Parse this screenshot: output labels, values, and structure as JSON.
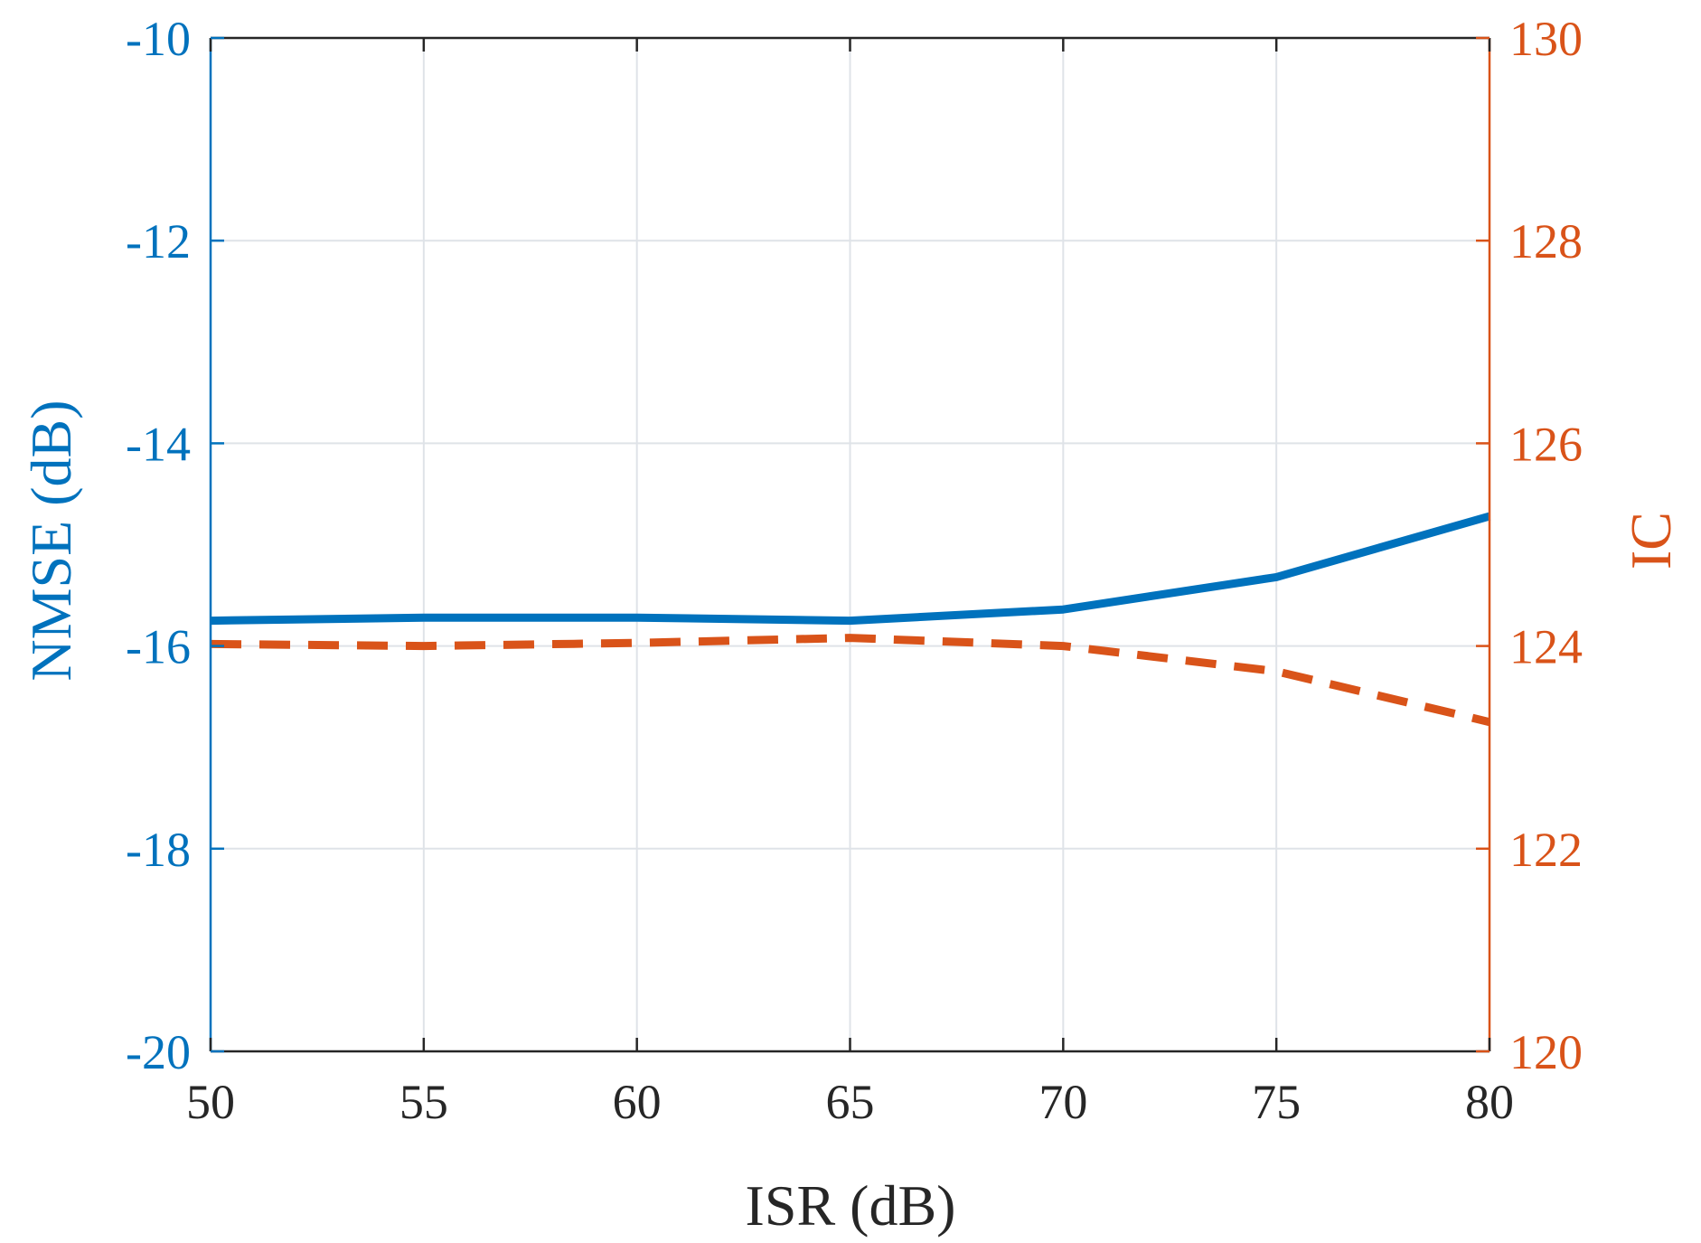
{
  "chart_data": {
    "type": "line",
    "title": "",
    "xlabel": "ISR (dB)",
    "ylabel_left": "NMSE (dB)",
    "ylabel_right": "IC",
    "x": [
      50,
      55,
      60,
      65,
      70,
      75,
      80
    ],
    "xlim": [
      50,
      80
    ],
    "ylim_left": [
      -20,
      -10
    ],
    "ylim_right": [
      120,
      130
    ],
    "x_ticks": [
      "50",
      "55",
      "60",
      "65",
      "70",
      "75",
      "80"
    ],
    "y_ticks_left": [
      "-20",
      "-18",
      "-16",
      "-14",
      "-12",
      "-10"
    ],
    "y_ticks_right": [
      "120",
      "122",
      "124",
      "126",
      "128",
      "130"
    ],
    "grid": true,
    "legend": "none",
    "series": [
      {
        "axis": "left",
        "style": "solid",
        "color": "#0072bd",
        "values": [
          -15.75,
          -15.72,
          -15.72,
          -15.75,
          -15.64,
          -15.32,
          -14.72
        ]
      },
      {
        "axis": "right",
        "style": "dashed",
        "color": "#d95319",
        "values": [
          124.02,
          124.0,
          124.03,
          124.08,
          124.0,
          123.75,
          123.25
        ]
      }
    ],
    "colors": {
      "left_axis": "#0072bd",
      "right_axis": "#d95319",
      "x_axis": "#262626",
      "grid": "#dfe3e8"
    }
  }
}
